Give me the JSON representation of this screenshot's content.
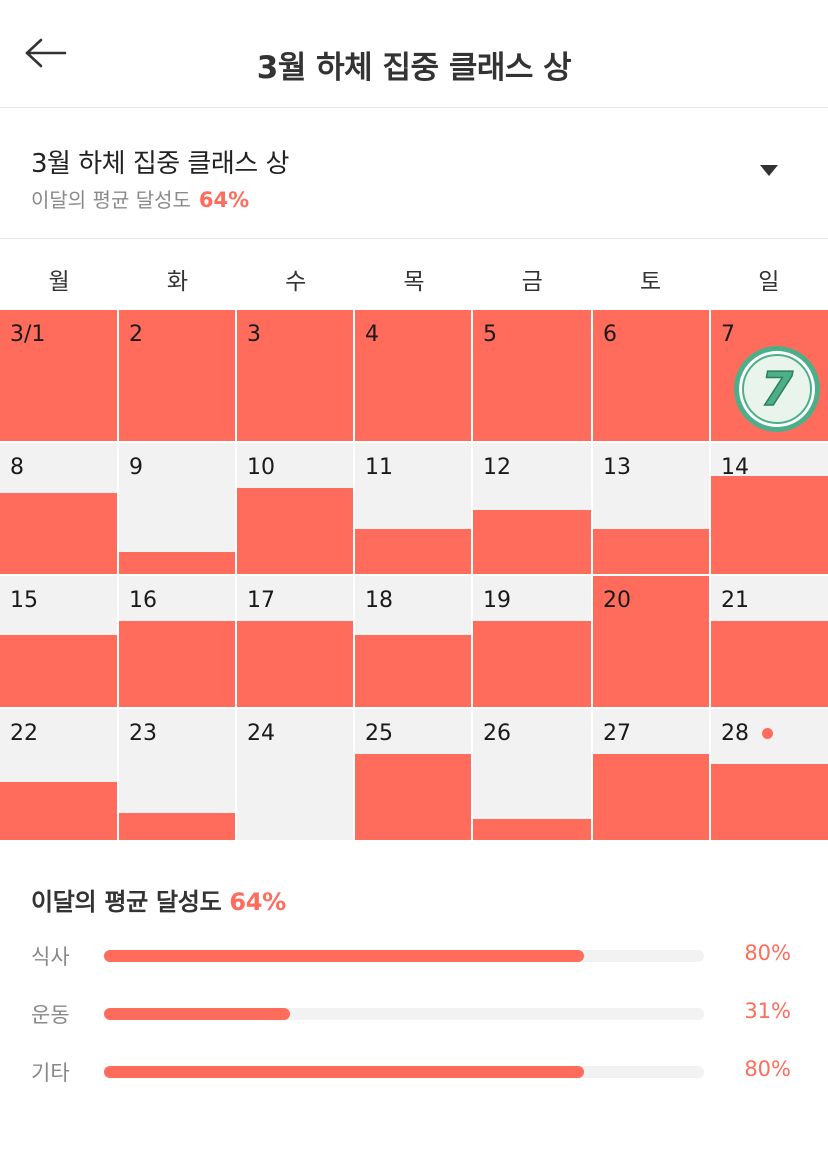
{
  "header": {
    "title": "3월 하체 집중 클래스 상"
  },
  "selector": {
    "title": "3월 하체 집중 클래스 상",
    "subtitle_label": "이달의 평균 달성도",
    "subtitle_value": "64%"
  },
  "weekdays": [
    "월",
    "화",
    "수",
    "목",
    "금",
    "토",
    "일"
  ],
  "calendar": {
    "weeks": [
      [
        {
          "label": "3/1",
          "achievement": 1.0
        },
        {
          "label": "2",
          "achievement": 1.0
        },
        {
          "label": "3",
          "achievement": 1.0
        },
        {
          "label": "4",
          "achievement": 1.0
        },
        {
          "label": "5",
          "achievement": 1.0
        },
        {
          "label": "6",
          "achievement": 1.0
        },
        {
          "label": "7",
          "achievement": 1.0,
          "badge": "7"
        }
      ],
      [
        {
          "label": "8",
          "achievement": 0.62
        },
        {
          "label": "9",
          "achievement": 0.17
        },
        {
          "label": "10",
          "achievement": 0.66
        },
        {
          "label": "11",
          "achievement": 0.34
        },
        {
          "label": "12",
          "achievement": 0.49
        },
        {
          "label": "13",
          "achievement": 0.34
        },
        {
          "label": "14",
          "achievement": 0.75
        }
      ],
      [
        {
          "label": "15",
          "achievement": 0.55
        },
        {
          "label": "16",
          "achievement": 0.66
        },
        {
          "label": "17",
          "achievement": 0.66
        },
        {
          "label": "18",
          "achievement": 0.55
        },
        {
          "label": "19",
          "achievement": 0.66
        },
        {
          "label": "20",
          "achievement": 1.0
        },
        {
          "label": "21",
          "achievement": 0.66
        }
      ],
      [
        {
          "label": "22",
          "achievement": 0.44
        },
        {
          "label": "23",
          "achievement": 0.21
        },
        {
          "label": "24",
          "achievement": 0.0
        },
        {
          "label": "25",
          "achievement": 0.66
        },
        {
          "label": "26",
          "achievement": 0.16
        },
        {
          "label": "27",
          "achievement": 0.66
        },
        {
          "label": "28",
          "achievement": 0.58,
          "today": true
        }
      ]
    ]
  },
  "summary": {
    "title": "이달의 평균 달성도",
    "value": "64%",
    "categories": [
      {
        "label": "식사",
        "value_text": "80%",
        "fraction": 0.8
      },
      {
        "label": "운동",
        "value_text": "31%",
        "fraction": 0.31
      },
      {
        "label": "기타",
        "value_text": "80%",
        "fraction": 0.8
      }
    ]
  },
  "colors": {
    "accent": "#ff6c5c",
    "cell_empty": "#f2f2f2",
    "text_primary": "#333333",
    "text_secondary": "#888888",
    "badge_green": "#4caf8a"
  },
  "icons": {
    "back": "arrow-left-icon",
    "dropdown": "triangle-down-icon",
    "streak_badge": "streak-7-badge-icon"
  }
}
